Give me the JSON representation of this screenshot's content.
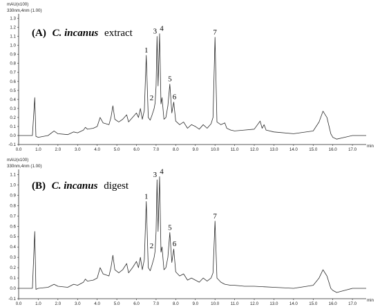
{
  "chart_data": [
    {
      "type": "line",
      "panel_label": "(A)",
      "title_species": "C. incanus",
      "title_suffix": "extract",
      "ylabel": "mAU(x100)",
      "detector": "330nm,4nm (1.00)",
      "xunit": "min",
      "xlim": [
        0.0,
        17.7
      ],
      "ylim": [
        -0.1,
        1.35
      ],
      "xticks": [
        "0.0",
        "1.0",
        "2.0",
        "3.0",
        "4.0",
        "5.0",
        "6.0",
        "7.0",
        "8.0",
        "9.0",
        "10.0",
        "11.0",
        "12.0",
        "13.0",
        "14.0",
        "15.0",
        "16.0",
        "17.0"
      ],
      "yticks": [
        "-0.1",
        "0.0",
        "0.1",
        "0.2",
        "0.3",
        "0.4",
        "0.5",
        "0.6",
        "0.7",
        "0.8",
        "0.9",
        "1.0",
        "1.1",
        "1.2",
        "1.3"
      ],
      "baseline": 0.0,
      "peaks": [
        {
          "label": "1",
          "rt": 6.5,
          "height": 0.89
        },
        {
          "label": "2",
          "rt": 6.95,
          "height": 0.36
        },
        {
          "label": "3",
          "rt": 7.05,
          "height": 1.1
        },
        {
          "label": "4",
          "rt": 7.18,
          "height": 1.13
        },
        {
          "label": "5",
          "rt": 7.7,
          "height": 0.57
        },
        {
          "label": "6",
          "rt": 7.9,
          "height": 0.37
        },
        {
          "label": "7",
          "rt": 10.0,
          "height": 1.09
        }
      ],
      "trace": [
        [
          0.0,
          0.0
        ],
        [
          0.7,
          0.0
        ],
        [
          0.82,
          0.42
        ],
        [
          0.88,
          -0.01
        ],
        [
          1.0,
          -0.02
        ],
        [
          1.5,
          0.0
        ],
        [
          1.8,
          0.05
        ],
        [
          2.0,
          0.02
        ],
        [
          2.5,
          0.01
        ],
        [
          2.8,
          0.04
        ],
        [
          3.0,
          0.03
        ],
        [
          3.3,
          0.06
        ],
        [
          3.4,
          0.09
        ],
        [
          3.5,
          0.07
        ],
        [
          3.8,
          0.08
        ],
        [
          4.0,
          0.1
        ],
        [
          4.15,
          0.2
        ],
        [
          4.3,
          0.14
        ],
        [
          4.6,
          0.12
        ],
        [
          4.7,
          0.2
        ],
        [
          4.8,
          0.33
        ],
        [
          4.9,
          0.18
        ],
        [
          5.1,
          0.15
        ],
        [
          5.3,
          0.18
        ],
        [
          5.5,
          0.23
        ],
        [
          5.6,
          0.15
        ],
        [
          5.8,
          0.2
        ],
        [
          6.0,
          0.25
        ],
        [
          6.1,
          0.2
        ],
        [
          6.2,
          0.3
        ],
        [
          6.3,
          0.18
        ],
        [
          6.4,
          0.28
        ],
        [
          6.5,
          0.89
        ],
        [
          6.6,
          0.2
        ],
        [
          6.7,
          0.17
        ],
        [
          6.8,
          0.23
        ],
        [
          6.9,
          0.3
        ],
        [
          6.95,
          0.36
        ],
        [
          7.0,
          0.55
        ],
        [
          7.05,
          1.1
        ],
        [
          7.1,
          0.55
        ],
        [
          7.18,
          1.13
        ],
        [
          7.25,
          0.35
        ],
        [
          7.3,
          0.42
        ],
        [
          7.4,
          0.18
        ],
        [
          7.5,
          0.2
        ],
        [
          7.6,
          0.33
        ],
        [
          7.7,
          0.57
        ],
        [
          7.8,
          0.25
        ],
        [
          7.9,
          0.37
        ],
        [
          8.0,
          0.16
        ],
        [
          8.2,
          0.12
        ],
        [
          8.4,
          0.15
        ],
        [
          8.6,
          0.08
        ],
        [
          8.8,
          0.12
        ],
        [
          9.0,
          0.1
        ],
        [
          9.2,
          0.07
        ],
        [
          9.4,
          0.12
        ],
        [
          9.6,
          0.08
        ],
        [
          9.8,
          0.13
        ],
        [
          9.9,
          0.2
        ],
        [
          10.0,
          1.09
        ],
        [
          10.1,
          0.15
        ],
        [
          10.3,
          0.12
        ],
        [
          10.5,
          0.14
        ],
        [
          10.6,
          0.08
        ],
        [
          10.8,
          0.06
        ],
        [
          11.0,
          0.05
        ],
        [
          11.5,
          0.06
        ],
        [
          12.0,
          0.07
        ],
        [
          12.3,
          0.16
        ],
        [
          12.4,
          0.08
        ],
        [
          12.5,
          0.12
        ],
        [
          12.6,
          0.06
        ],
        [
          13.0,
          0.04
        ],
        [
          14.0,
          0.02
        ],
        [
          15.0,
          0.05
        ],
        [
          15.3,
          0.15
        ],
        [
          15.5,
          0.27
        ],
        [
          15.7,
          0.2
        ],
        [
          15.9,
          0.02
        ],
        [
          16.0,
          -0.02
        ],
        [
          16.2,
          -0.04
        ],
        [
          16.6,
          -0.02
        ],
        [
          17.0,
          0.0
        ],
        [
          17.7,
          0.0
        ]
      ]
    },
    {
      "type": "line",
      "panel_label": "(B)",
      "title_species": "C. incanus",
      "title_suffix": "digest",
      "ylabel": "mAU(x100)",
      "detector": "330nm,4nm (1.00)",
      "xunit": "min",
      "xlim": [
        0.0,
        17.7
      ],
      "ylim": [
        -0.1,
        1.15
      ],
      "xticks": [
        "0.0",
        "1.0",
        "2.0",
        "3.0",
        "4.0",
        "5.0",
        "6.0",
        "7.0",
        "8.0",
        "9.0",
        "10.0",
        "11.0",
        "12.0",
        "13.0",
        "14.0",
        "15.0",
        "16.0",
        "17.0"
      ],
      "yticks": [
        "-0.1",
        "0.0",
        "0.1",
        "0.2",
        "0.3",
        "0.4",
        "0.5",
        "0.6",
        "0.7",
        "0.8",
        "0.9",
        "1.0",
        "1.1"
      ],
      "baseline": 0.0,
      "peaks": [
        {
          "label": "1",
          "rt": 6.5,
          "height": 0.84
        },
        {
          "label": "2",
          "rt": 6.95,
          "height": 0.36
        },
        {
          "label": "3",
          "rt": 7.05,
          "height": 1.05
        },
        {
          "label": "4",
          "rt": 7.18,
          "height": 1.08
        },
        {
          "label": "5",
          "rt": 7.7,
          "height": 0.54
        },
        {
          "label": "6",
          "rt": 7.9,
          "height": 0.38
        },
        {
          "label": "7",
          "rt": 10.0,
          "height": 0.65
        }
      ],
      "trace": [
        [
          0.0,
          0.0
        ],
        [
          0.7,
          0.0
        ],
        [
          0.82,
          0.55
        ],
        [
          0.88,
          -0.01
        ],
        [
          1.0,
          0.0
        ],
        [
          1.5,
          0.01
        ],
        [
          1.8,
          0.04
        ],
        [
          2.0,
          0.02
        ],
        [
          2.5,
          0.01
        ],
        [
          2.8,
          0.04
        ],
        [
          3.0,
          0.03
        ],
        [
          3.3,
          0.06
        ],
        [
          3.4,
          0.09
        ],
        [
          3.5,
          0.07
        ],
        [
          3.8,
          0.08
        ],
        [
          4.0,
          0.1
        ],
        [
          4.15,
          0.2
        ],
        [
          4.3,
          0.14
        ],
        [
          4.6,
          0.12
        ],
        [
          4.7,
          0.2
        ],
        [
          4.8,
          0.32
        ],
        [
          4.9,
          0.18
        ],
        [
          5.1,
          0.15
        ],
        [
          5.3,
          0.18
        ],
        [
          5.5,
          0.24
        ],
        [
          5.6,
          0.15
        ],
        [
          5.8,
          0.2
        ],
        [
          6.0,
          0.26
        ],
        [
          6.1,
          0.2
        ],
        [
          6.2,
          0.3
        ],
        [
          6.3,
          0.18
        ],
        [
          6.4,
          0.28
        ],
        [
          6.5,
          0.84
        ],
        [
          6.6,
          0.2
        ],
        [
          6.7,
          0.17
        ],
        [
          6.8,
          0.23
        ],
        [
          6.9,
          0.3
        ],
        [
          6.95,
          0.36
        ],
        [
          7.0,
          0.55
        ],
        [
          7.05,
          1.05
        ],
        [
          7.1,
          0.55
        ],
        [
          7.18,
          1.08
        ],
        [
          7.25,
          0.35
        ],
        [
          7.3,
          0.4
        ],
        [
          7.4,
          0.18
        ],
        [
          7.5,
          0.2
        ],
        [
          7.6,
          0.3
        ],
        [
          7.7,
          0.54
        ],
        [
          7.8,
          0.25
        ],
        [
          7.9,
          0.38
        ],
        [
          8.0,
          0.16
        ],
        [
          8.2,
          0.12
        ],
        [
          8.4,
          0.14
        ],
        [
          8.6,
          0.08
        ],
        [
          8.8,
          0.1
        ],
        [
          9.0,
          0.08
        ],
        [
          9.2,
          0.06
        ],
        [
          9.4,
          0.1
        ],
        [
          9.6,
          0.07
        ],
        [
          9.8,
          0.1
        ],
        [
          9.9,
          0.15
        ],
        [
          10.0,
          0.65
        ],
        [
          10.1,
          0.1
        ],
        [
          10.3,
          0.06
        ],
        [
          10.5,
          0.04
        ],
        [
          10.8,
          0.03
        ],
        [
          11.0,
          0.03
        ],
        [
          11.5,
          0.02
        ],
        [
          12.0,
          0.02
        ],
        [
          13.0,
          0.01
        ],
        [
          14.0,
          0.0
        ],
        [
          15.0,
          0.03
        ],
        [
          15.3,
          0.1
        ],
        [
          15.5,
          0.18
        ],
        [
          15.7,
          0.12
        ],
        [
          15.9,
          0.0
        ],
        [
          16.0,
          -0.02
        ],
        [
          16.2,
          -0.04
        ],
        [
          16.6,
          -0.02
        ],
        [
          17.0,
          0.0
        ],
        [
          17.7,
          0.0
        ]
      ]
    }
  ]
}
